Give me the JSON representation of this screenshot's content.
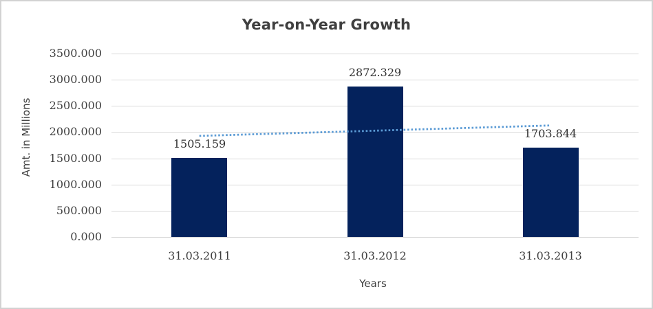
{
  "chart_data": {
    "type": "bar",
    "title": "Year-on-Year Growth",
    "categories": [
      "31.03.2011",
      "31.03.2012",
      "31.03.2013"
    ],
    "values": [
      1505.159,
      2872.329,
      1703.844
    ],
    "value_labels": [
      "1505.159",
      "2872.329",
      "1703.844"
    ],
    "xlabel": "Years",
    "ylabel": "Amt. in Millions",
    "ylim": [
      0,
      3500
    ],
    "ytick_step": 500,
    "ytick_labels": [
      "3500.000",
      "3000.000",
      "2500.000",
      "2000.000",
      "1500.000",
      "1000.000",
      "500.000",
      "0.000"
    ],
    "grid": true,
    "legend_position": "none",
    "trendline": {
      "type": "linear",
      "style": "dotted",
      "start_value": 1928,
      "end_value": 2127
    },
    "colors": {
      "bar": "#04225c",
      "trendline": "#5b9bd5",
      "gridline": "#d9d9d9",
      "axis_line": "#d0d0d0",
      "text": "#3f3f3f",
      "value_label_text": "#303030",
      "border": "#d2d2d2",
      "background": "#ffffff"
    }
  }
}
